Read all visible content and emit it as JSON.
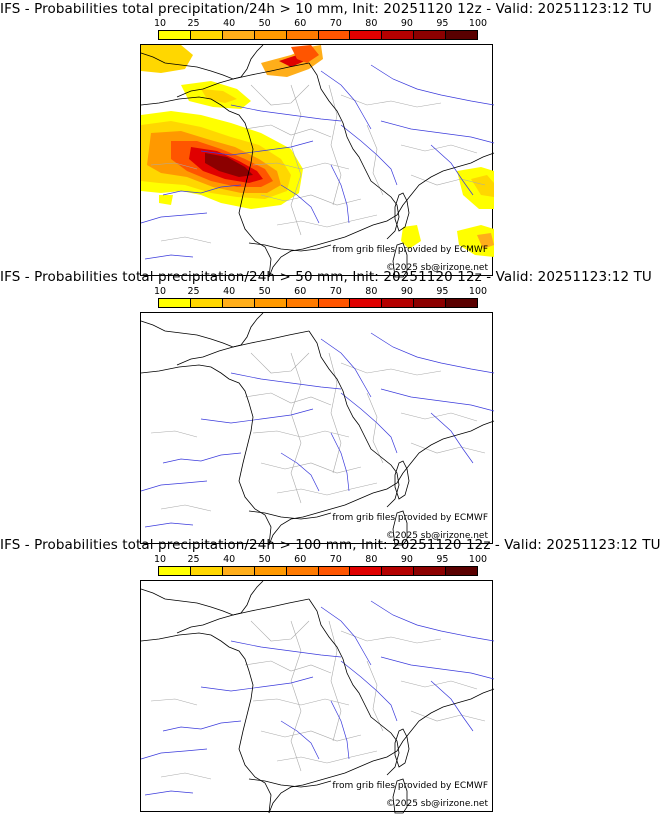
{
  "panels": [
    {
      "title": "IFS - Probabilities total precipitation/24h > 10 mm, Init: 20251120 12z - Valid: 20251123:12 TU",
      "credit_grib": "from grib files provided by ECMWF",
      "credit_copyright": "©2025 sb@irizone.net",
      "has_precip": true
    },
    {
      "title": "IFS - Probabilities total precipitation/24h > 50 mm, Init: 20251120 12z - Valid: 20251123:12 TU",
      "credit_grib": "from grib files provided by ECMWF",
      "credit_copyright": "©2025 sb@irizone.net",
      "has_precip": false
    },
    {
      "title": "IFS - Probabilities total precipitation/24h > 100 mm, Init: 20251120 12z - Valid: 20251123:12 TU",
      "credit_grib": "from grib files provided by ECMWF",
      "credit_copyright": "©2025 sb@irizone.net",
      "has_precip": false
    }
  ],
  "colorbar": {
    "labels": [
      "10",
      "25",
      "40",
      "50",
      "60",
      "70",
      "80",
      "90",
      "95",
      "100"
    ],
    "colors": [
      "#ffff00",
      "#ffd700",
      "#ffae1a",
      "#ff9900",
      "#ff7a00",
      "#ff5500",
      "#e00000",
      "#b40000",
      "#8c0000",
      "#5a0000"
    ]
  }
}
